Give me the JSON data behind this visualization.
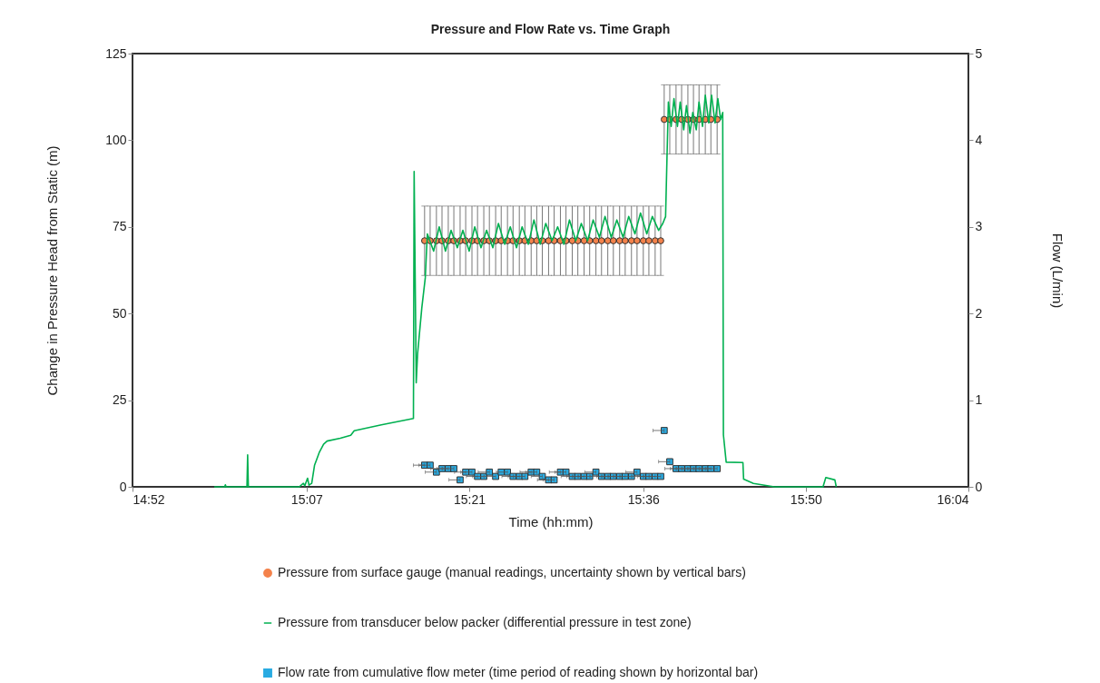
{
  "chart_data": {
    "type": "line",
    "title": "Pressure and Flow Rate vs. Time Graph",
    "xlabel": "Time (hh:mm)",
    "ylabel": "Change in Pressure Head from Static (m)",
    "y2label": "Flow (L/min)",
    "xlim": [
      14.8667,
      16.0667
    ],
    "xticks": [
      {
        "value": 14.8667,
        "label": "14:52"
      },
      {
        "value": 15.1167,
        "label": "15:07"
      },
      {
        "value": 15.35,
        "label": "15:21"
      },
      {
        "value": 15.6,
        "label": "15:36"
      },
      {
        "value": 15.8333,
        "label": "15:50"
      },
      {
        "value": 16.0667,
        "label": "16:04"
      }
    ],
    "ylim": [
      0,
      125
    ],
    "yticks": [
      0,
      25,
      50,
      75,
      100,
      125
    ],
    "y2lim": [
      0,
      5
    ],
    "y2ticks": [
      0,
      1,
      2,
      3,
      4,
      5
    ],
    "grid": false,
    "legend": "bottom",
    "series": [
      {
        "name": "Pressure from surface gauge (manual readings, uncertainty shown by vertical bars)",
        "type": "scatter",
        "marker": "circle",
        "color": "#f4824b",
        "x": [
          15.286,
          15.294,
          15.303,
          15.311,
          15.32,
          15.328,
          15.337,
          15.345,
          15.354,
          15.362,
          15.371,
          15.379,
          15.388,
          15.396,
          15.405,
          15.413,
          15.422,
          15.43,
          15.439,
          15.447,
          15.455,
          15.464,
          15.472,
          15.481,
          15.489,
          15.498,
          15.506,
          15.515,
          15.523,
          15.532,
          15.54,
          15.549,
          15.557,
          15.566,
          15.574,
          15.583,
          15.591,
          15.6,
          15.608,
          15.617,
          15.625,
          15.63,
          15.638,
          15.647,
          15.655,
          15.664,
          15.672,
          15.68,
          15.689,
          15.697,
          15.706
        ],
        "values": [
          71,
          71,
          71,
          71,
          71,
          71,
          71,
          71,
          71,
          71,
          71,
          71,
          71,
          71,
          71,
          71,
          71,
          71,
          71,
          71,
          71,
          71,
          71,
          71,
          71,
          71,
          71,
          71,
          71,
          71,
          71,
          71,
          71,
          71,
          71,
          71,
          71,
          71,
          71,
          71,
          71,
          106,
          106,
          106,
          106,
          106,
          106,
          106,
          106,
          106,
          106
        ],
        "errors": [
          10,
          10,
          10,
          10,
          10,
          10,
          10,
          10,
          10,
          10,
          10,
          10,
          10,
          10,
          10,
          10,
          10,
          10,
          10,
          10,
          10,
          10,
          10,
          10,
          10,
          10,
          10,
          10,
          10,
          10,
          10,
          10,
          10,
          10,
          10,
          10,
          10,
          10,
          10,
          10,
          10,
          10,
          10,
          10,
          10,
          10,
          10,
          10,
          10,
          10,
          10
        ]
      },
      {
        "name": "Pressure from transducer below packer (differential pressure in test zone)",
        "marker": "none",
        "line_style": "solid",
        "color": "#00b050",
        "x": [
          14.984,
          14.999,
          15.0,
          15.001,
          15.031,
          15.032,
          15.033,
          15.106,
          15.112,
          15.114,
          15.118,
          15.12,
          15.124,
          15.128,
          15.135,
          15.141,
          15.146,
          15.165,
          15.18,
          15.185,
          15.224,
          15.27,
          15.271,
          15.274,
          15.276,
          15.282,
          15.287,
          15.289,
          15.29,
          15.299,
          15.307,
          15.316,
          15.324,
          15.333,
          15.341,
          15.35,
          15.358,
          15.367,
          15.375,
          15.384,
          15.392,
          15.401,
          15.409,
          15.418,
          15.426,
          15.435,
          15.443,
          15.452,
          15.46,
          15.469,
          15.477,
          15.486,
          15.494,
          15.503,
          15.511,
          15.52,
          15.528,
          15.537,
          15.545,
          15.554,
          15.562,
          15.571,
          15.579,
          15.588,
          15.596,
          15.605,
          15.613,
          15.622,
          15.628,
          15.632,
          15.634,
          15.636,
          15.64,
          15.644,
          15.649,
          15.653,
          15.658,
          15.662,
          15.667,
          15.671,
          15.676,
          15.68,
          15.685,
          15.689,
          15.694,
          15.698,
          15.703,
          15.707,
          15.711,
          15.714,
          15.715,
          15.719,
          15.743,
          15.744,
          15.758,
          15.788,
          15.858,
          15.862,
          15.875,
          15.877
        ],
        "values": [
          0,
          0,
          0.6,
          0,
          0,
          9.2,
          0,
          0,
          1,
          0.3,
          2.5,
          0.5,
          1,
          6.2,
          10,
          12.3,
          13.2,
          14,
          14.9,
          16.2,
          17.9,
          19.7,
          91,
          30,
          38.5,
          51.6,
          60.3,
          69,
          73,
          68,
          75,
          68,
          74,
          69,
          74,
          68,
          75,
          69,
          74,
          69,
          76,
          70,
          75,
          69,
          75,
          70,
          77,
          70,
          76,
          71,
          75,
          70,
          77,
          71,
          76,
          71,
          77,
          72,
          78,
          72,
          77,
          72,
          78,
          73,
          79,
          73,
          78,
          74,
          76,
          78,
          95,
          111,
          104,
          112,
          104,
          111,
          103,
          110,
          102,
          108,
          103,
          111,
          104,
          113,
          105,
          113,
          105,
          112,
          106,
          108,
          15,
          7.1,
          7,
          2.2,
          1,
          0,
          0,
          2.7,
          2,
          0
        ]
      },
      {
        "name": "Flow rate from cumulative flow meter (time period of reading shown by horizontal bar)",
        "type": "scatter",
        "marker": "square",
        "color": "#29abe2",
        "axis": "y2",
        "x": [
          15.286,
          15.294,
          15.303,
          15.311,
          15.32,
          15.328,
          15.337,
          15.345,
          15.354,
          15.362,
          15.371,
          15.379,
          15.388,
          15.396,
          15.405,
          15.413,
          15.422,
          15.43,
          15.439,
          15.447,
          15.455,
          15.464,
          15.472,
          15.481,
          15.489,
          15.498,
          15.506,
          15.515,
          15.523,
          15.532,
          15.54,
          15.549,
          15.557,
          15.566,
          15.574,
          15.583,
          15.591,
          15.6,
          15.608,
          15.617,
          15.625,
          15.63,
          15.638,
          15.647,
          15.655,
          15.664,
          15.672,
          15.68,
          15.689,
          15.697,
          15.706
        ],
        "values": [
          0.25,
          0.25,
          0.17,
          0.21,
          0.21,
          0.21,
          0.08,
          0.17,
          0.17,
          0.12,
          0.12,
          0.17,
          0.12,
          0.17,
          0.17,
          0.12,
          0.12,
          0.12,
          0.17,
          0.17,
          0.12,
          0.08,
          0.08,
          0.17,
          0.17,
          0.12,
          0.12,
          0.12,
          0.12,
          0.17,
          0.12,
          0.12,
          0.12,
          0.12,
          0.12,
          0.12,
          0.17,
          0.12,
          0.12,
          0.12,
          0.12,
          0.65,
          0.29,
          0.21,
          0.21,
          0.21,
          0.21,
          0.21,
          0.21,
          0.21,
          0.21
        ],
        "xerrors": [
          [
            15.27,
            15.286
          ],
          [
            15.278,
            15.294
          ],
          [
            15.287,
            15.303
          ],
          [
            15.295,
            15.311
          ],
          [
            15.304,
            15.32
          ],
          [
            15.312,
            15.328
          ],
          [
            15.321,
            15.337
          ],
          [
            15.329,
            15.345
          ],
          [
            15.338,
            15.354
          ],
          [
            15.346,
            15.362
          ],
          [
            15.355,
            15.371
          ],
          [
            15.363,
            15.379
          ],
          [
            15.372,
            15.388
          ],
          null,
          [
            15.389,
            15.405
          ],
          [
            15.397,
            15.413
          ],
          [
            15.406,
            15.422
          ],
          [
            15.414,
            15.43
          ],
          [
            15.423,
            15.439
          ],
          [
            15.431,
            15.447
          ],
          [
            15.439,
            15.455
          ],
          [
            15.448,
            15.464
          ],
          [
            15.456,
            15.472
          ],
          [
            15.465,
            15.481
          ],
          [
            15.473,
            15.489
          ],
          [
            15.482,
            15.498
          ],
          [
            15.49,
            15.506
          ],
          [
            15.499,
            15.515
          ],
          [
            15.507,
            15.523
          ],
          [
            15.516,
            15.532
          ],
          [
            15.524,
            15.54
          ],
          [
            15.533,
            15.549
          ],
          [
            15.541,
            15.557
          ],
          [
            15.55,
            15.566
          ],
          [
            15.558,
            15.574
          ],
          [
            15.567,
            15.583
          ],
          [
            15.575,
            15.591
          ],
          [
            15.584,
            15.6
          ],
          [
            15.592,
            15.608
          ],
          [
            15.601,
            15.617
          ],
          [
            15.609,
            15.625
          ],
          [
            15.614,
            15.63
          ],
          [
            15.622,
            15.638
          ],
          [
            15.631,
            15.647
          ],
          [
            15.639,
            15.655
          ],
          [
            15.648,
            15.664
          ],
          [
            15.656,
            15.672
          ],
          [
            15.664,
            15.68
          ],
          [
            15.673,
            15.689
          ],
          [
            15.681,
            15.697
          ],
          [
            15.69,
            15.706
          ]
        ]
      }
    ]
  }
}
